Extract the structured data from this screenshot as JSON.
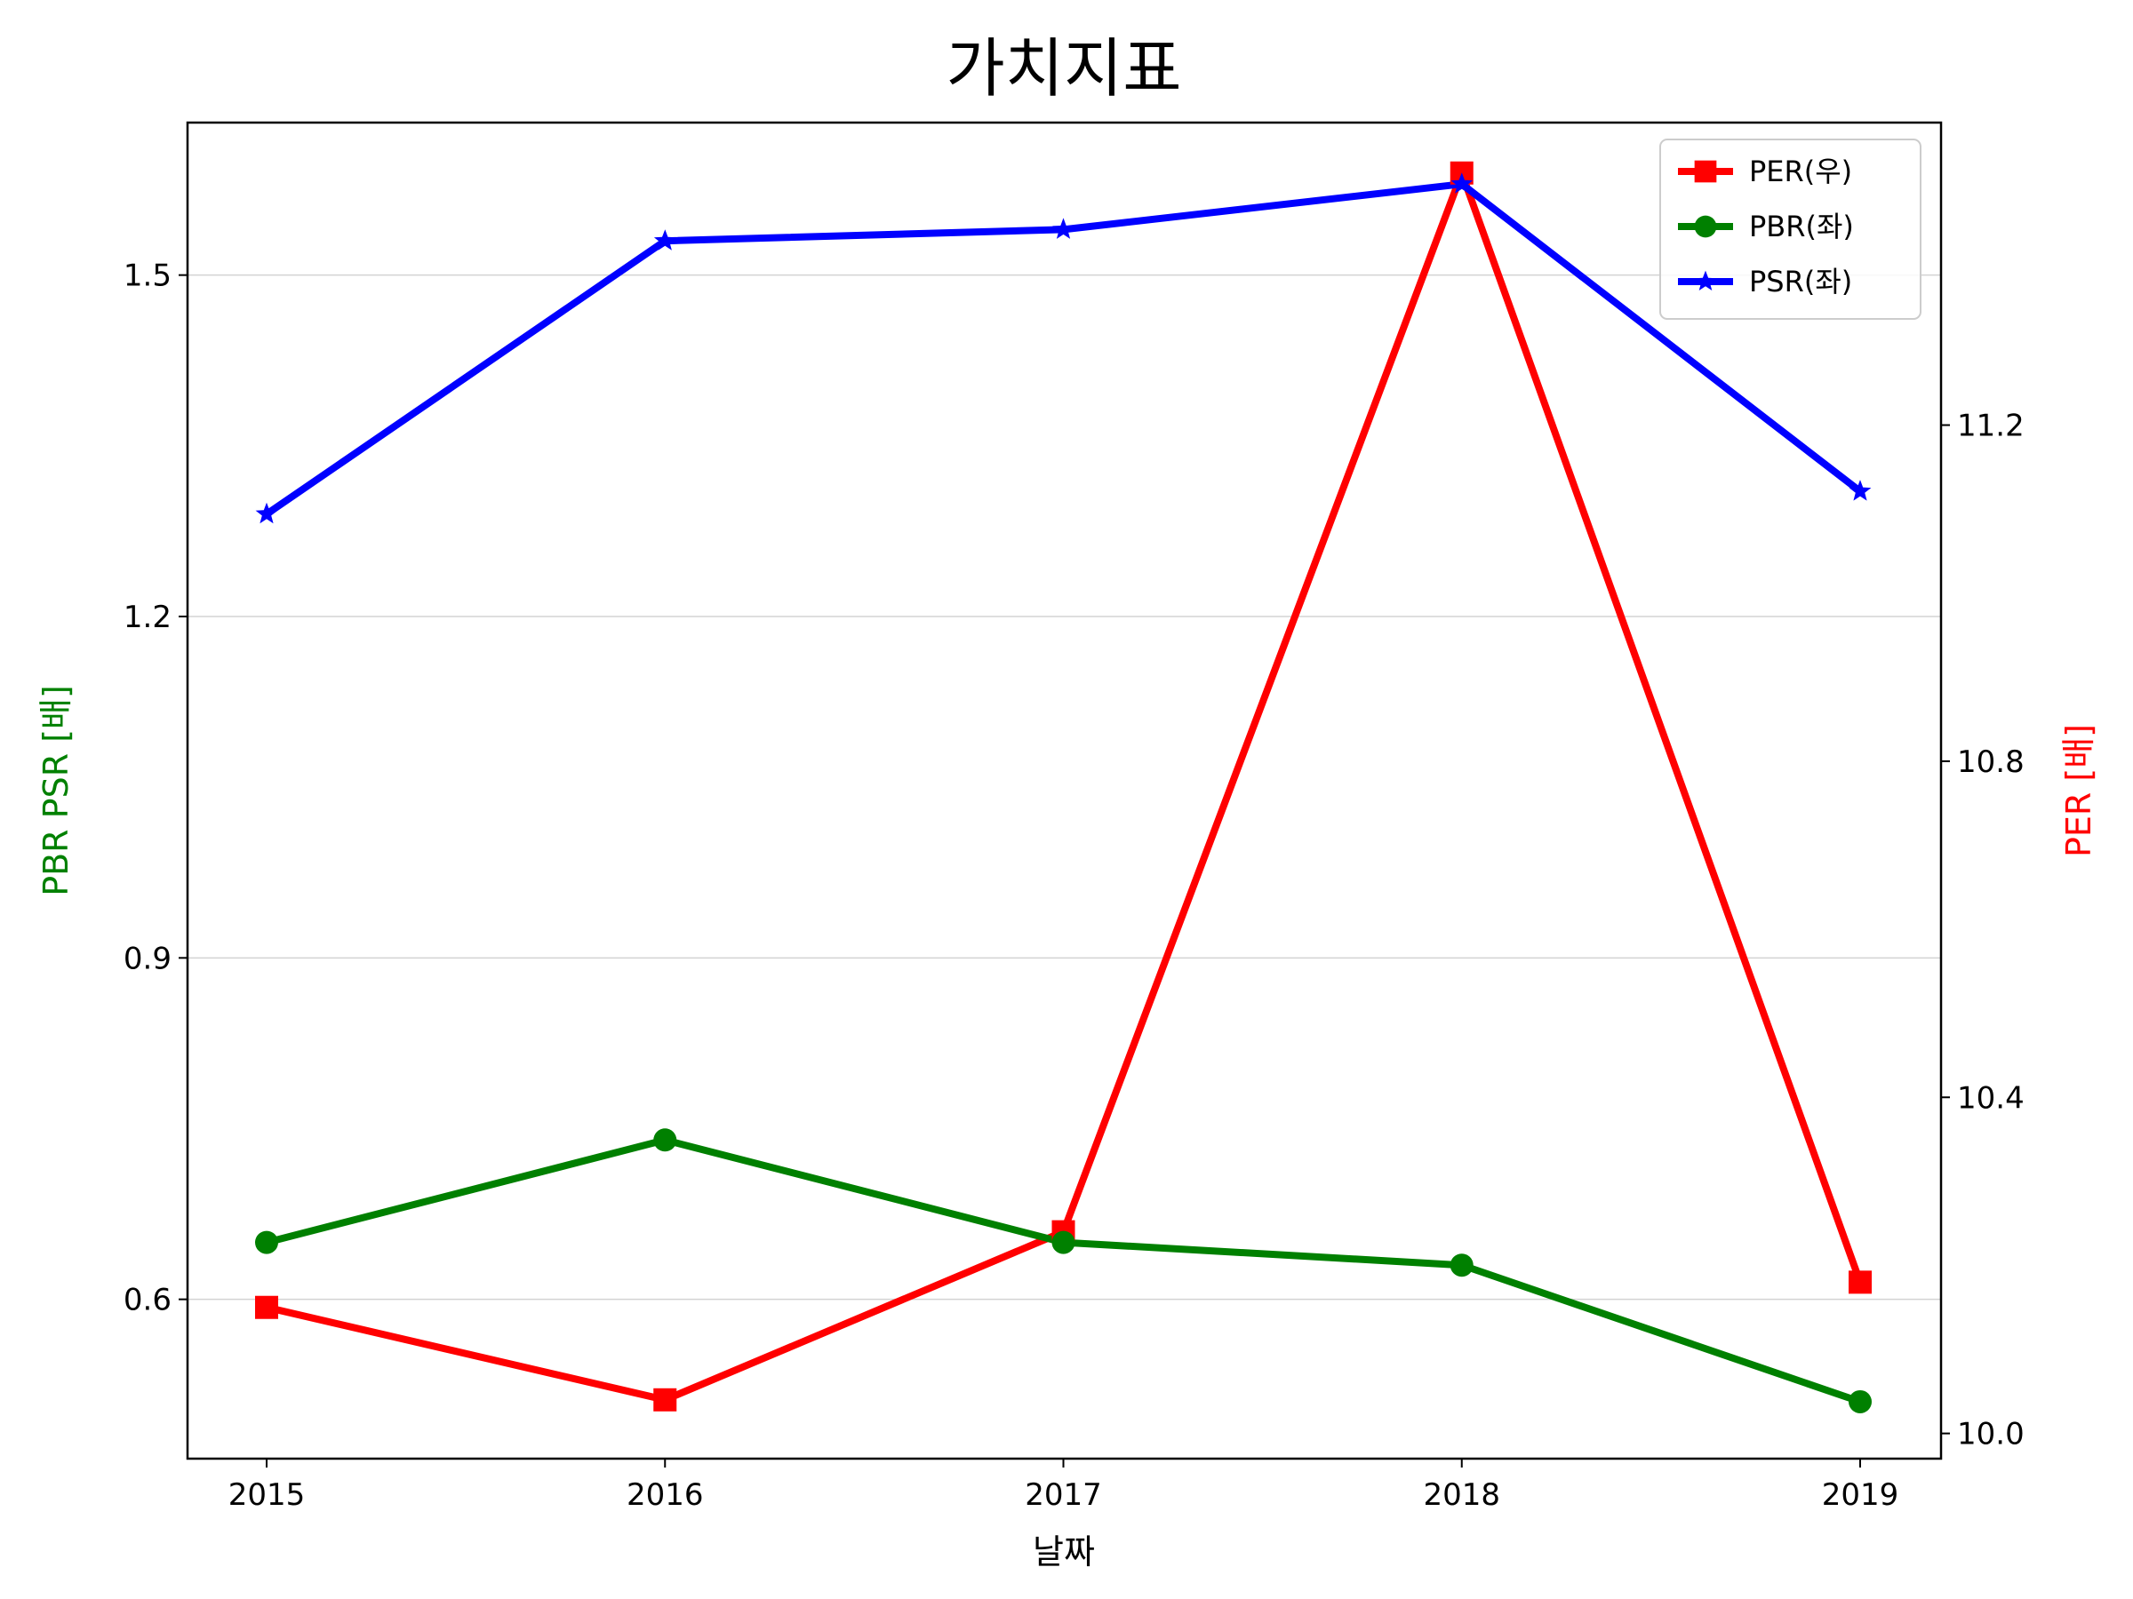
{
  "chart_data": {
    "type": "line",
    "title": "가치지표",
    "xlabel": "날짜",
    "ylabel_left": "PBR PSR [배]",
    "ylabel_right": "PER [배]",
    "categories": [
      "2015",
      "2016",
      "2017",
      "2018",
      "2019"
    ],
    "left_axis": {
      "ylim": [
        0.46,
        1.634
      ],
      "ticks": [
        0.6,
        0.9,
        1.2,
        1.5
      ],
      "tick_labels": [
        "0.6",
        "0.9",
        "1.2",
        "1.5"
      ],
      "grid": true
    },
    "right_axis": {
      "ylim": [
        9.97,
        11.56
      ],
      "ticks": [
        10.0,
        10.4,
        10.8,
        11.2
      ],
      "tick_labels": [
        "10.0",
        "10.4",
        "10.8",
        "11.2"
      ]
    },
    "series": [
      {
        "name": "PER(우)",
        "axis": "right",
        "color": "#ff0000",
        "marker": "square",
        "values": [
          10.15,
          10.04,
          10.24,
          11.5,
          10.18
        ]
      },
      {
        "name": "PBR(좌)",
        "axis": "left",
        "color": "#008000",
        "marker": "circle",
        "values": [
          0.65,
          0.74,
          0.65,
          0.63,
          0.51
        ]
      },
      {
        "name": "PSR(좌)",
        "axis": "left",
        "color": "#0000ff",
        "marker": "star",
        "values": [
          1.29,
          1.53,
          1.54,
          1.58,
          1.31
        ]
      }
    ],
    "legend": {
      "placement": "top-right"
    }
  }
}
